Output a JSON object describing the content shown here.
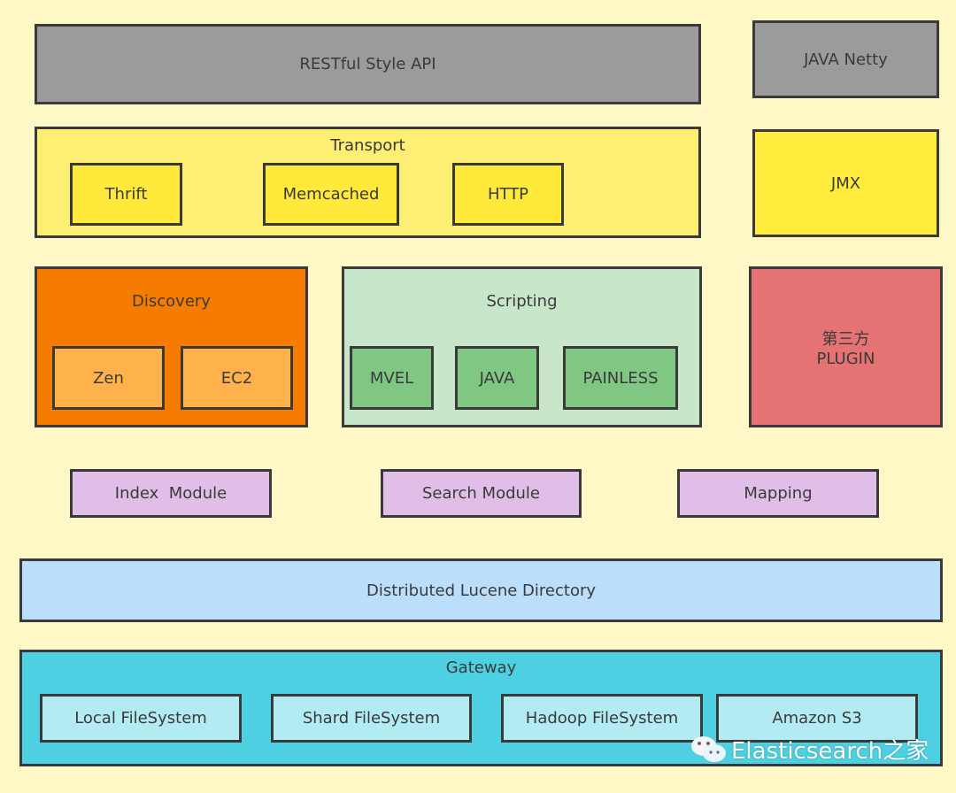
{
  "rest": "RESTful Style API",
  "netty": "JAVA Netty",
  "transport": {
    "title": "Transport",
    "items": [
      "Thrift",
      "Memcached",
      "HTTP"
    ]
  },
  "jmx": "JMX",
  "discovery": {
    "title": "Discovery",
    "items": [
      "Zen",
      "EC2"
    ]
  },
  "scripting": {
    "title": "Scripting",
    "items": [
      "MVEL",
      "JAVA",
      "PAINLESS"
    ]
  },
  "plugin": {
    "line1": "第三方",
    "line2": "PLUGIN"
  },
  "modules": [
    "Index  Module",
    "Search Module",
    "Mapping"
  ],
  "lucene": "Distributed Lucene Directory",
  "gateway": {
    "title": "Gateway",
    "items": [
      "Local FileSystem",
      "Shard FileSystem",
      "Hadoop FileSystem",
      "Amazon S3"
    ]
  },
  "watermark": "Elasticsearch之家",
  "colors": {
    "background": "#fef8c6",
    "api": "#9b9b9b",
    "transport": "#fdef74",
    "transport_item": "#ffe93a",
    "discovery": "#f57c00",
    "discovery_item": "#ffb24c",
    "scripting": "#c8e6c9",
    "scripting_item": "#81c784",
    "plugin": "#e57373",
    "module": "#e1bee7",
    "lucene": "#bbdefb",
    "gateway": "#4dd0e1",
    "gateway_item": "#b2ebf2"
  }
}
